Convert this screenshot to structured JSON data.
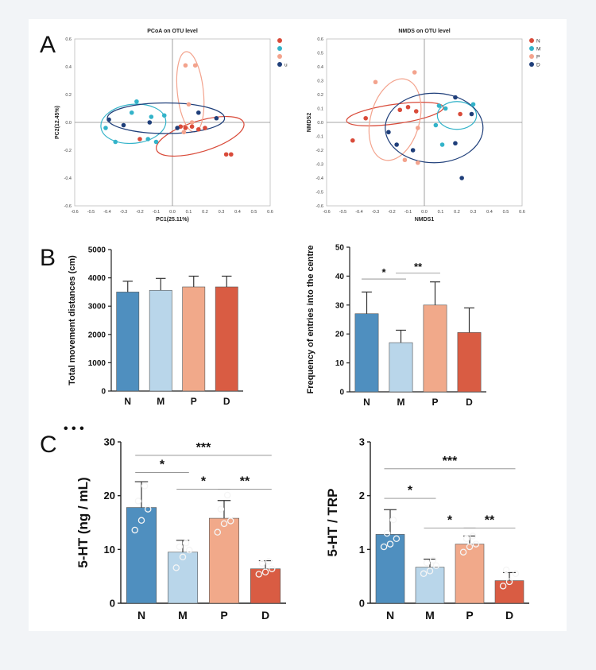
{
  "colors": {
    "N": "#4f8fbf",
    "M": "#b9d6ea",
    "P": "#f1a98a",
    "D": "#d95c43",
    "pcoa_N": "#d94b3a",
    "pcoa_M": "#33b3c9",
    "pcoa_P": "#f3a38d",
    "pcoa_D": "#1f3f7a",
    "axis": "#222222",
    "grid": "#999999"
  },
  "panel_labels": {
    "a": "A",
    "b": "B",
    "c": "C"
  },
  "chart_data": [
    {
      "id": "pcoa",
      "type": "scatter",
      "title": "PCoA on OTU level",
      "xlabel": "PC1(25.11%)",
      "ylabel": "PC2(12.45%)",
      "xlim": [
        -0.6,
        0.6
      ],
      "ylim": [
        -0.6,
        0.6
      ],
      "xticks": [
        "-0.6",
        "-0.5",
        "-0.4",
        "-0.3",
        "-0.2",
        "-0.1",
        "0.0",
        "0.1",
        "0.2",
        "0.3",
        "0.4",
        "0.5",
        "0.6"
      ],
      "yticks": [
        "0.6",
        "0.4",
        "0.2",
        "0.0",
        "-0.2",
        "-0.4",
        "-0.6"
      ],
      "legend": {
        "position": "top-right",
        "entries": [
          "",
          "",
          "",
          "u"
        ]
      },
      "series": [
        {
          "name": "N",
          "color": "pcoa_N",
          "points": [
            [
              0.05,
              -0.03
            ],
            [
              0.08,
              -0.04
            ],
            [
              0.12,
              -0.03
            ],
            [
              0.16,
              -0.05
            ],
            [
              0.2,
              -0.04
            ],
            [
              0.33,
              -0.23
            ],
            [
              0.36,
              -0.23
            ],
            [
              -0.2,
              -0.12
            ]
          ]
        },
        {
          "name": "M",
          "color": "pcoa_M",
          "points": [
            [
              -0.41,
              -0.04
            ],
            [
              -0.35,
              -0.14
            ],
            [
              -0.25,
              0.07
            ],
            [
              -0.22,
              0.15
            ],
            [
              -0.15,
              -0.12
            ],
            [
              -0.13,
              0.04
            ],
            [
              -0.1,
              -0.14
            ],
            [
              -0.05,
              0.05
            ]
          ]
        },
        {
          "name": "P",
          "color": "pcoa_P",
          "points": [
            [
              0.08,
              0.41
            ],
            [
              0.14,
              0.41
            ],
            [
              0.1,
              0.13
            ],
            [
              0.07,
              -0.07
            ],
            [
              0.12,
              0.0
            ]
          ]
        },
        {
          "name": "D",
          "color": "pcoa_D",
          "points": [
            [
              -0.39,
              0.02
            ],
            [
              -0.3,
              -0.02
            ],
            [
              -0.14,
              0.0
            ],
            [
              0.16,
              0.07
            ],
            [
              0.27,
              0.03
            ],
            [
              0.03,
              -0.04
            ]
          ]
        }
      ],
      "ellipses": [
        {
          "series": "N",
          "cx": 0.17,
          "cy": -0.1,
          "rx": 0.28,
          "ry": 0.11,
          "angle": -17
        },
        {
          "series": "M",
          "cx": -0.24,
          "cy": -0.01,
          "rx": 0.2,
          "ry": 0.14,
          "angle": -6
        },
        {
          "series": "P",
          "cx": 0.11,
          "cy": 0.22,
          "rx": 0.08,
          "ry": 0.29,
          "angle": -6
        },
        {
          "series": "D",
          "cx": -0.04,
          "cy": 0.03,
          "rx": 0.36,
          "ry": 0.11,
          "angle": 0
        }
      ]
    },
    {
      "id": "nmds",
      "type": "scatter",
      "title": "NMDS on OTU level",
      "xlabel": "NMDS1",
      "ylabel": "NMDS2",
      "xlim": [
        -0.6,
        0.6
      ],
      "ylim": [
        -0.6,
        0.6
      ],
      "xticks": [
        "-0.6",
        "-0.5",
        "-0.4",
        "-0.3",
        "-0.2",
        "-0.1",
        "0.0",
        "0.1",
        "0.2",
        "0.3",
        "0.4",
        "0.5",
        "0.6"
      ],
      "yticks": [
        "0.6",
        "0.5",
        "0.4",
        "0.3",
        "0.2",
        "0.1",
        "0.0",
        "-0.1",
        "-0.2",
        "-0.3",
        "-0.4",
        "-0.5",
        "-0.6"
      ],
      "legend": {
        "position": "top-right",
        "entries": [
          "N",
          "M",
          "P",
          "D"
        ]
      },
      "series": [
        {
          "name": "N",
          "color": "pcoa_N",
          "points": [
            [
              -0.44,
              -0.13
            ],
            [
              -0.36,
              0.03
            ],
            [
              -0.15,
              0.09
            ],
            [
              -0.1,
              0.11
            ],
            [
              -0.05,
              0.08
            ],
            [
              0.22,
              0.06
            ]
          ]
        },
        {
          "name": "M",
          "color": "pcoa_M",
          "points": [
            [
              0.09,
              0.12
            ],
            [
              0.13,
              0.1
            ],
            [
              0.07,
              -0.02
            ],
            [
              0.11,
              -0.16
            ],
            [
              0.3,
              0.13
            ]
          ]
        },
        {
          "name": "P",
          "color": "pcoa_P",
          "points": [
            [
              -0.3,
              0.29
            ],
            [
              -0.06,
              0.36
            ],
            [
              -0.04,
              -0.04
            ],
            [
              -0.12,
              -0.27
            ],
            [
              -0.04,
              -0.29
            ]
          ]
        },
        {
          "name": "D",
          "color": "pcoa_D",
          "points": [
            [
              -0.22,
              -0.07
            ],
            [
              -0.17,
              -0.16
            ],
            [
              -0.07,
              -0.2
            ],
            [
              0.19,
              0.18
            ],
            [
              0.29,
              0.06
            ],
            [
              0.19,
              -0.15
            ],
            [
              0.23,
              -0.4
            ]
          ]
        }
      ],
      "ellipses": [
        {
          "series": "N",
          "cx": -0.18,
          "cy": 0.06,
          "rx": 0.3,
          "ry": 0.07,
          "angle": -8
        },
        {
          "series": "M",
          "cx": 0.2,
          "cy": 0.05,
          "rx": 0.12,
          "ry": 0.1,
          "angle": 0
        },
        {
          "series": "P",
          "cx": -0.18,
          "cy": 0.02,
          "rx": 0.15,
          "ry": 0.3,
          "angle": 15
        },
        {
          "series": "D",
          "cx": 0.06,
          "cy": -0.04,
          "rx": 0.3,
          "ry": 0.25,
          "angle": 0
        }
      ]
    },
    {
      "id": "distance",
      "type": "bar",
      "categories": [
        "N",
        "M",
        "P",
        "D"
      ],
      "values": [
        3500,
        3560,
        3680,
        3680
      ],
      "errors": [
        380,
        420,
        380,
        380
      ],
      "ylabel": "Total movement distances (cm)",
      "ylim": [
        0,
        5000
      ],
      "yticks": [
        "0",
        "1000",
        "2000",
        "3000",
        "4000",
        "5000"
      ],
      "significance": []
    },
    {
      "id": "entries",
      "type": "bar",
      "categories": [
        "N",
        "M",
        "P",
        "D"
      ],
      "values": [
        27,
        17,
        30,
        20.5
      ],
      "errors": [
        7.5,
        4.3,
        8,
        8.5
      ],
      "ylabel": "Frequency of entries into the centre",
      "ylim": [
        0,
        50
      ],
      "yticks": [
        "0",
        "10",
        "20",
        "30",
        "40",
        "50"
      ],
      "significance": [
        {
          "from": 0,
          "to": 1,
          "y": 39,
          "label": "*"
        },
        {
          "from": 1,
          "to": 2,
          "y": 41,
          "label": "**"
        }
      ]
    },
    {
      "id": "ht",
      "type": "bar",
      "categories": [
        "N",
        "M",
        "P",
        "D"
      ],
      "values": [
        17.8,
        9.5,
        15.8,
        6.4
      ],
      "errors": [
        4.8,
        2.2,
        3.3,
        1.5
      ],
      "points": [
        [
          13.6,
          15.4,
          17.5,
          19,
          21.8
        ],
        [
          6.6,
          8.6,
          9.9,
          10.5,
          11.2
        ],
        [
          13.2,
          14.8,
          15.3,
          17.5,
          20.1
        ],
        [
          5.4,
          5.8,
          6.4,
          7.4,
          7.8
        ]
      ],
      "ylabel": "5-HT (ng / mL)",
      "ylim": [
        0,
        30
      ],
      "yticks": [
        "0",
        "10",
        "20",
        "30"
      ],
      "significance": [
        {
          "from": 0,
          "to": 1,
          "y": 24.3,
          "label": "*"
        },
        {
          "from": 1,
          "to": 2,
          "y": 21.2,
          "label": "*"
        },
        {
          "from": 2,
          "to": 3,
          "y": 21.2,
          "label": "**"
        },
        {
          "from": 0,
          "to": 3,
          "y": 27.5,
          "label": "***"
        }
      ]
    },
    {
      "id": "ratio",
      "type": "bar",
      "categories": [
        "N",
        "M",
        "P",
        "D"
      ],
      "values": [
        1.28,
        0.67,
        1.1,
        0.42
      ],
      "errors": [
        0.46,
        0.15,
        0.15,
        0.15
      ],
      "points": [
        [
          1.05,
          1.1,
          1.2,
          1.3,
          1.55
        ],
        [
          0.55,
          0.6,
          0.7,
          0.75,
          0.8
        ],
        [
          0.95,
          1.05,
          1.1,
          1.2,
          1.25
        ],
        [
          0.32,
          0.4,
          0.55,
          0.62
        ]
      ],
      "ylabel": "5-HT / TRP",
      "ylim": [
        0,
        3
      ],
      "yticks": [
        "0",
        "1",
        "2",
        "3"
      ],
      "significance": [
        {
          "from": 0,
          "to": 1,
          "y": 1.95,
          "label": "*"
        },
        {
          "from": 1,
          "to": 2,
          "y": 1.4,
          "label": "*"
        },
        {
          "from": 2,
          "to": 3,
          "y": 1.4,
          "label": "**"
        },
        {
          "from": 0,
          "to": 3,
          "y": 2.5,
          "label": "***"
        }
      ]
    }
  ]
}
